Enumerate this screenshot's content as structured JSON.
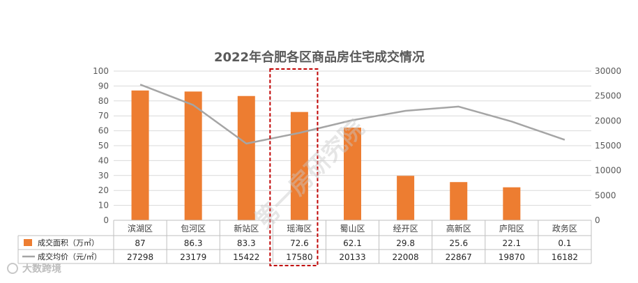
{
  "chart_data": {
    "type": "bar",
    "title": "2022年合肥各区商品房住宅成交情况",
    "categories": [
      "滨湖区",
      "包河区",
      "新站区",
      "瑶海区",
      "蜀山区",
      "经开区",
      "高新区",
      "庐阳区",
      "政务区"
    ],
    "series": [
      {
        "name": "成交面积（万㎡）",
        "type": "bar",
        "axis": "left",
        "color": "#ED7D31",
        "values": [
          87,
          86.3,
          83.3,
          72.6,
          62.1,
          29.8,
          25.6,
          22.1,
          0.1
        ]
      },
      {
        "name": "成交均价（元/㎡）",
        "type": "line",
        "axis": "right",
        "color": "#A5A5A5",
        "values": [
          27298,
          23179,
          15422,
          17580,
          20133,
          22008,
          22867,
          19870,
          16182
        ]
      }
    ],
    "y_left": {
      "ylim": [
        0,
        100
      ],
      "ticks": [
        0,
        10,
        20,
        30,
        40,
        50,
        60,
        70,
        80,
        90,
        100
      ]
    },
    "y_right": {
      "ylim": [
        0,
        30000
      ],
      "ticks": [
        0,
        5000,
        10000,
        15000,
        20000,
        25000,
        30000
      ]
    },
    "data_table": true,
    "highlight_category": "瑶海区",
    "highlight_color": "#C00000"
  },
  "watermark": "第一房研究院",
  "brand": "大数跨境"
}
